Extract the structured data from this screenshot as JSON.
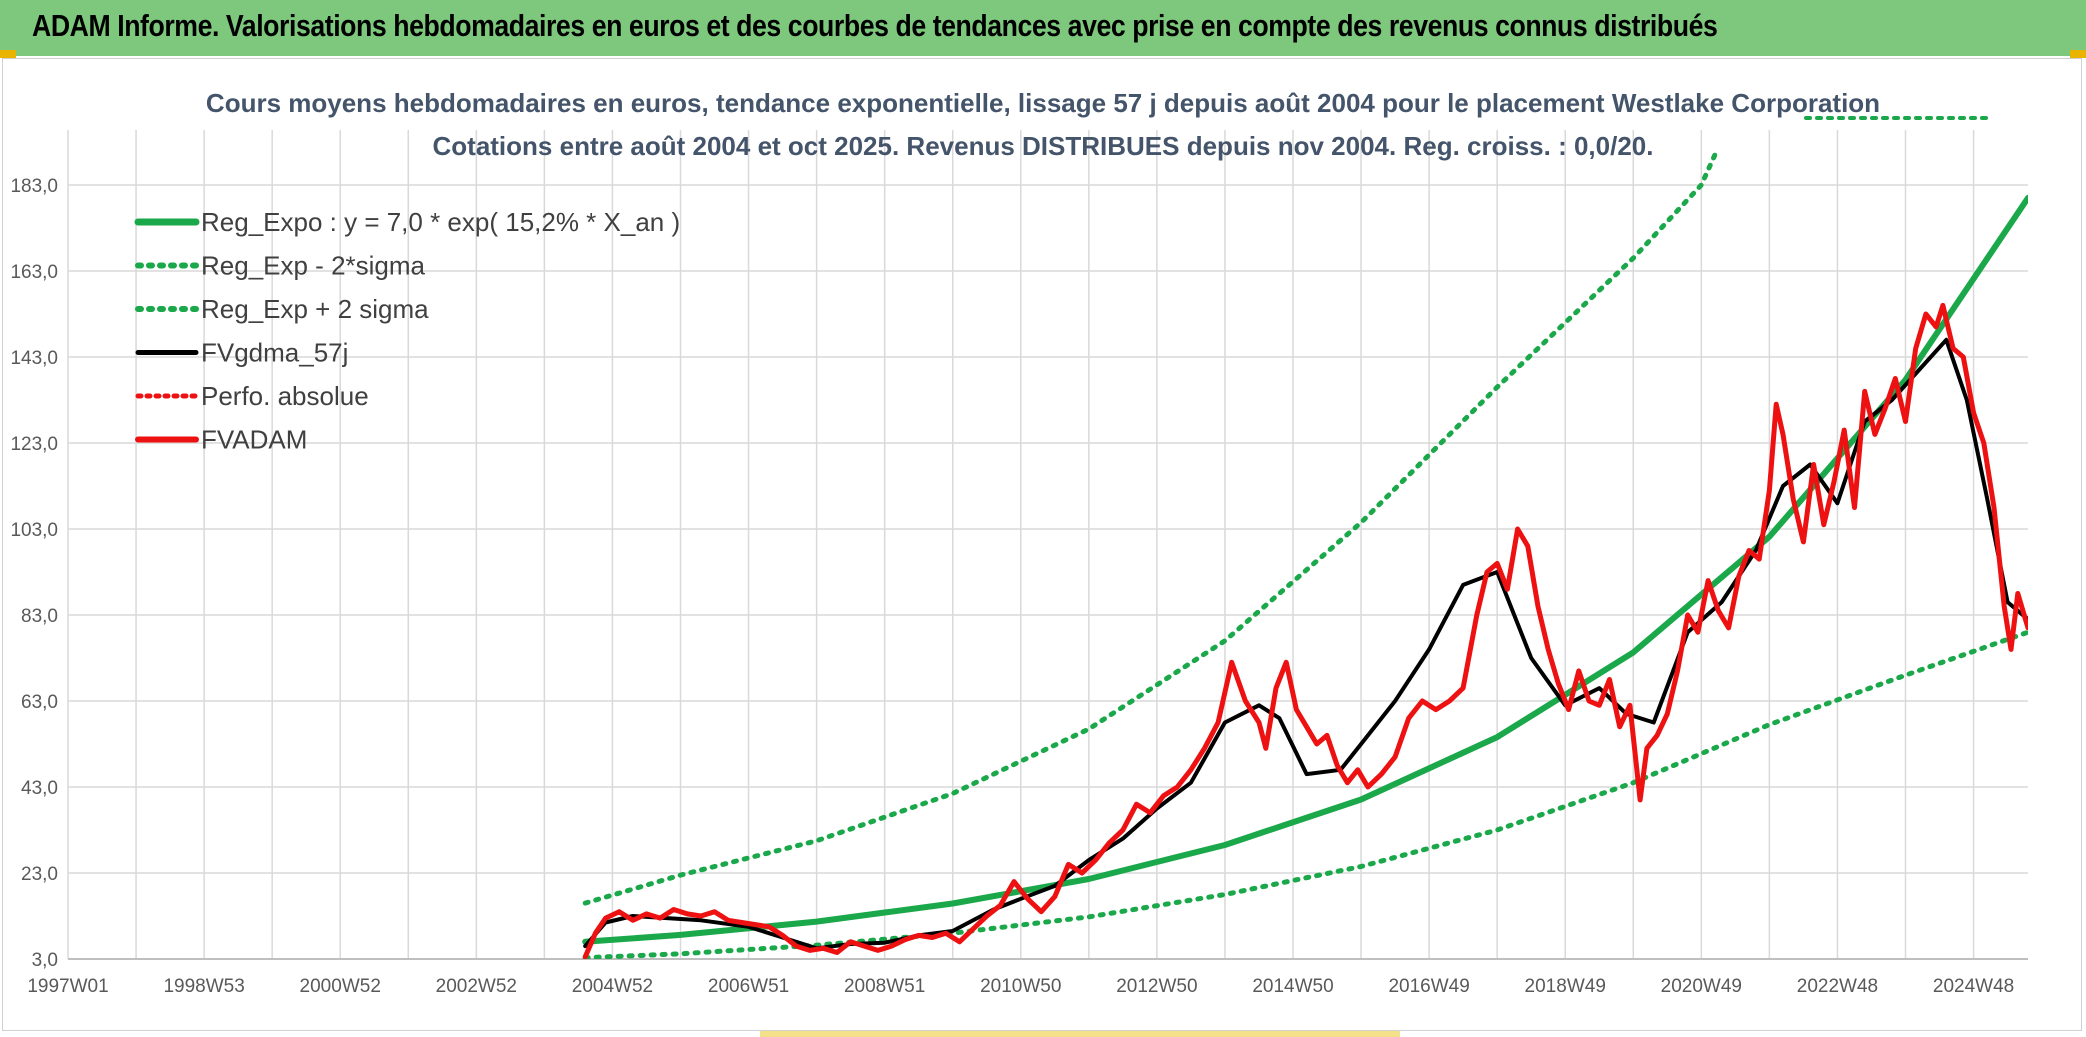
{
  "header": {
    "title": "ADAM Informe. Valorisations hebdomadaires en euros et des courbes de tendances avec prise en compte des revenus connus distribués"
  },
  "colors": {
    "header_bg": "#7dc87d",
    "reg_expo": "#1aa84a",
    "reg_band": "#1aa84a",
    "fvgdma": "#000000",
    "fvadam": "#ee1111",
    "perfo": "#ee1111",
    "grid": "#d9d9d9"
  },
  "chart_data": {
    "type": "line",
    "title": "Cours moyens hebdomadaires en euros, tendance exponentielle, lissage 57 j depuis août 2004 pour le placement Westlake Corporation",
    "subtitle": "Cotations entre août 2004 et oct 2025. Revenus DISTRIBUES depuis nov 2004. Reg. croiss. : 0,0/20.",
    "xlabel": "",
    "ylabel": "",
    "ylim": [
      3.0,
      193.0
    ],
    "xlim": [
      1997.0,
      2025.8
    ],
    "y_ticks": [
      "183,0",
      "163,0",
      "143,0",
      "123,0",
      "103,0",
      "83,0",
      "63,0",
      "43,0",
      "23,0",
      "3,0"
    ],
    "y_tick_values": [
      183,
      163,
      143,
      123,
      103,
      83,
      63,
      43,
      23,
      3
    ],
    "x_ticks": [
      "1997W01",
      "1998W53",
      "2000W52",
      "2002W52",
      "2004W52",
      "2006W51",
      "2008W51",
      "2010W50",
      "2012W50",
      "2014W50",
      "2016W49",
      "2018W49",
      "2020W49",
      "2022W48",
      "2024W48"
    ],
    "x_tick_values": [
      1997.0,
      1999.0,
      2001.0,
      2003.0,
      2005.0,
      2007.0,
      2009.0,
      2011.0,
      2013.0,
      2015.0,
      2017.0,
      2019.0,
      2021.0,
      2023.0,
      2025.0
    ],
    "grid": true,
    "legend_position": "top-left",
    "series": [
      {
        "name": "Reg_Expo : y = 7,0 * exp( 15,2% *  X_an )",
        "style": "solid-thick-green",
        "x": [
          2004.6,
          2006,
          2008,
          2010,
          2012,
          2014,
          2016,
          2018,
          2020,
          2022,
          2024,
          2025.8
        ],
        "y": [
          7.0,
          8.6,
          11.7,
          15.9,
          21.6,
          29.5,
          40.1,
          54.6,
          74.3,
          101.2,
          137.7,
          180.0
        ]
      },
      {
        "name": "Reg_Exp - 2*sigma",
        "style": "dotted-green",
        "x": [
          2004.6,
          2006,
          2008,
          2010,
          2012,
          2014,
          2016,
          2018,
          2020,
          2022,
          2024,
          2025.8
        ],
        "y": [
          3.3,
          4.2,
          6.2,
          9.0,
          12.8,
          18.0,
          24.5,
          33.0,
          44.0,
          57.5,
          69.0,
          79.0
        ]
      },
      {
        "name": "Reg_Exp + 2 sigma",
        "style": "dotted-green",
        "x": [
          2004.6,
          2006,
          2008,
          2010,
          2012,
          2014,
          2016,
          2018,
          2020,
          2021,
          2021.2
        ],
        "y": [
          16.0,
          22.5,
          30.5,
          41.5,
          56.5,
          77.0,
          104.5,
          136.0,
          166.0,
          183.0,
          190.0
        ]
      },
      {
        "name": "FVgdma_57j",
        "style": "solid-black",
        "x": [
          2004.6,
          2004.9,
          2005.3,
          2005.8,
          2006.3,
          2007.0,
          2007.6,
          2008.0,
          2008.5,
          2009.0,
          2009.5,
          2010.0,
          2010.6,
          2011.0,
          2011.5,
          2012.0,
          2012.5,
          2013.0,
          2013.5,
          2014.0,
          2014.5,
          2014.8,
          2015.2,
          2015.7,
          2016.0,
          2016.5,
          2017.0,
          2017.5,
          2018.0,
          2018.5,
          2019.0,
          2019.5,
          2019.9,
          2020.3,
          2020.8,
          2021.3,
          2021.8,
          2022.2,
          2022.6,
          2023.0,
          2023.4,
          2023.8,
          2024.2,
          2024.6,
          2024.9,
          2025.2,
          2025.5,
          2025.8
        ],
        "y": [
          6.0,
          11.5,
          13.0,
          12.5,
          12.0,
          10.5,
          7.5,
          5.5,
          6.5,
          6.8,
          8.5,
          9.5,
          14.5,
          17.0,
          20.0,
          26.0,
          31.0,
          38.0,
          44.0,
          58.0,
          62.0,
          59.0,
          46.0,
          47.0,
          53.0,
          63.0,
          75.0,
          90.0,
          93.0,
          73.0,
          62.0,
          66.0,
          60.0,
          58.0,
          79.0,
          86.0,
          98.0,
          113.0,
          118.0,
          109.0,
          128.0,
          133.0,
          140.0,
          147.0,
          133.0,
          110.0,
          86.0,
          82.0
        ]
      },
      {
        "name": "Perfo. absolue",
        "style": "dotted-red",
        "x": [],
        "y": []
      },
      {
        "name": "FVADAM",
        "style": "solid-red",
        "x": [
          2004.6,
          2004.75,
          2004.9,
          2005.1,
          2005.3,
          2005.5,
          2005.7,
          2005.9,
          2006.1,
          2006.3,
          2006.5,
          2006.7,
          2006.9,
          2007.1,
          2007.3,
          2007.5,
          2007.7,
          2007.9,
          2008.1,
          2008.3,
          2008.5,
          2008.7,
          2008.9,
          2009.1,
          2009.3,
          2009.5,
          2009.7,
          2009.9,
          2010.1,
          2010.3,
          2010.5,
          2010.7,
          2010.9,
          2011.1,
          2011.3,
          2011.5,
          2011.7,
          2011.9,
          2012.1,
          2012.3,
          2012.5,
          2012.7,
          2012.9,
          2013.1,
          2013.3,
          2013.5,
          2013.7,
          2013.9,
          2014.1,
          2014.3,
          2014.5,
          2014.6,
          2014.75,
          2014.9,
          2015.05,
          2015.2,
          2015.35,
          2015.5,
          2015.65,
          2015.8,
          2015.95,
          2016.1,
          2016.3,
          2016.5,
          2016.7,
          2016.9,
          2017.1,
          2017.3,
          2017.5,
          2017.7,
          2017.85,
          2018.0,
          2018.15,
          2018.3,
          2018.45,
          2018.6,
          2018.75,
          2018.9,
          2019.05,
          2019.2,
          2019.35,
          2019.5,
          2019.65,
          2019.8,
          2019.95,
          2020.1,
          2020.2,
          2020.35,
          2020.5,
          2020.65,
          2020.8,
          2020.95,
          2021.1,
          2021.25,
          2021.4,
          2021.55,
          2021.7,
          2021.85,
          2022.0,
          2022.1,
          2022.2,
          2022.35,
          2022.5,
          2022.65,
          2022.8,
          2022.95,
          2023.1,
          2023.25,
          2023.4,
          2023.55,
          2023.7,
          2023.85,
          2024.0,
          2024.15,
          2024.3,
          2024.45,
          2024.55,
          2024.7,
          2024.85,
          2025.0,
          2025.15,
          2025.3,
          2025.45,
          2025.55,
          2025.65,
          2025.8
        ],
        "y": [
          3.5,
          9.0,
          12.5,
          14.0,
          12.0,
          13.5,
          12.5,
          14.5,
          13.5,
          13.0,
          14.0,
          12.0,
          11.5,
          11.0,
          10.5,
          8.5,
          6.0,
          5.0,
          5.5,
          4.5,
          7.0,
          6.0,
          5.0,
          6.0,
          7.5,
          8.5,
          8.0,
          9.0,
          7.0,
          10.0,
          13.0,
          15.5,
          21.0,
          17.0,
          14.0,
          17.5,
          25.0,
          23.0,
          26.0,
          30.0,
          33.0,
          39.0,
          37.0,
          41.0,
          43.0,
          47.0,
          52.0,
          58.0,
          72.0,
          63.0,
          58.0,
          52.0,
          66.0,
          72.0,
          61.0,
          57.0,
          53.0,
          55.0,
          48.0,
          44.0,
          47.0,
          43.0,
          46.0,
          50.0,
          59.0,
          63.0,
          61.0,
          63.0,
          66.0,
          83.0,
          93.0,
          95.0,
          89.0,
          103.0,
          99.0,
          85.0,
          75.0,
          67.0,
          61.0,
          70.0,
          63.0,
          62.0,
          68.0,
          57.0,
          62.0,
          40.0,
          52.0,
          55.0,
          60.0,
          70.0,
          83.0,
          79.0,
          91.0,
          84.0,
          80.0,
          92.0,
          98.0,
          96.0,
          112.0,
          132.0,
          125.0,
          110.0,
          100.0,
          118.0,
          104.0,
          114.0,
          126.0,
          108.0,
          135.0,
          125.0,
          131.0,
          138.0,
          128.0,
          145.0,
          153.0,
          150.0,
          155.0,
          145.0,
          143.0,
          130.0,
          123.0,
          108.0,
          85.0,
          75.0,
          88.0,
          80.0
        ]
      }
    ]
  }
}
